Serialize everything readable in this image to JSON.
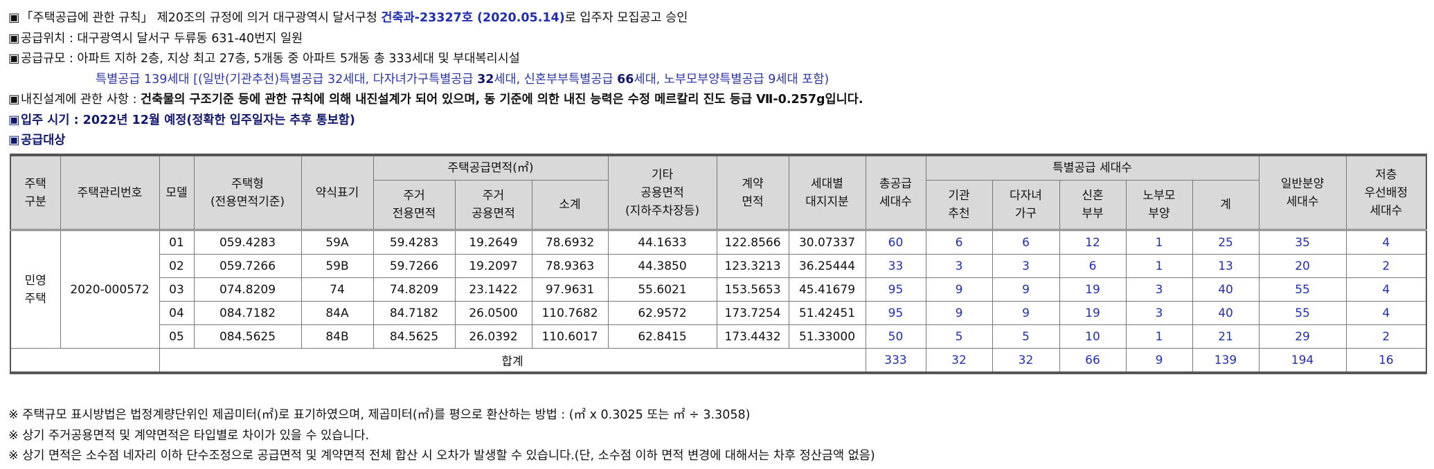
{
  "bullet": "▣",
  "lines": [
    {
      "pre": "「주택공급에 관한 규칙」 제20조의 규정에 의거 대구광역시 달서구청 ",
      "em": "건축과-23327호 (2020.05.14)",
      "post": "로 입주자 모집공고 승인"
    },
    {
      "text": "공급위치 : 대구광역시 달서구 두류동 631-40번지 일원"
    },
    {
      "text": "공급규모 : 아파트 지하 2층, 지상 최고 27층, 5개동 중 아파트 5개동 총 333세대 및 부대복리시설"
    },
    {
      "p1": "특별공급 139세대 [(일반(기관추천)특별공급 32세대, 다자녀가구특별공급  ",
      "n1": "32",
      "p2": "세대, 신혼부부특별공급 ",
      "n2": "66",
      "p3": "세대, 노부모부양특별공급 9세대 포함)"
    },
    {
      "pre": "내진설계에 관한 사항 : ",
      "bold": "건축물의 구조기준 등에 관한 규칙에 의해 내진설계가 되어 있으며, 동 기준에 의한 내진 능력은 수정 메르칼리 진도 등급 Ⅶ-0.257g입니다."
    },
    {
      "text": "입주 시기 : 2022년 12월 예정(정확한 입주일자는 추후 통보함)"
    },
    {
      "text": "공급대상"
    }
  ],
  "table": {
    "headers": {
      "housing_type": "주택\n구분",
      "mgmt_no": "주택관리번호",
      "model": "모델",
      "unit_type": "주택형\n(전용면적기준)",
      "abbr": "약식표기",
      "supply_area": "주택공급면적(㎡)",
      "exclusive": "주거\n전용면적",
      "common": "주거\n공용면적",
      "subtotal": "소계",
      "other_common": "기타\n공용면적\n(지하주차장등)",
      "contract": "계약\n면적",
      "land": "세대별\n대지지분",
      "total": "총공급\n세대수",
      "special": "특별공급 세대수",
      "institution": "기관\n추천",
      "multichild": "다자녀\n가구",
      "newlywed": "신혼\n부부",
      "elderly": "노부모\n부양",
      "sum": "계",
      "general": "일반분양\n세대수",
      "low_floor": "저층\n우선배정\n세대수"
    },
    "group_label": "민영\n주택",
    "mgmt_no": "2020-000572",
    "rows": [
      [
        "01",
        "059.4283",
        "59A",
        "59.4283",
        "19.2649",
        "78.6932",
        "44.1633",
        "122.8566",
        "30.07337",
        "60",
        "6",
        "6",
        "12",
        "1",
        "25",
        "35",
        "4"
      ],
      [
        "02",
        "059.7266",
        "59B",
        "59.7266",
        "19.2097",
        "78.9363",
        "44.3850",
        "123.3213",
        "36.25444",
        "33",
        "3",
        "3",
        "6",
        "1",
        "13",
        "20",
        "2"
      ],
      [
        "03",
        "074.8209",
        "74",
        "74.8209",
        "23.1422",
        "97.9631",
        "55.6021",
        "153.5653",
        "45.41679",
        "95",
        "9",
        "9",
        "19",
        "3",
        "40",
        "55",
        "4"
      ],
      [
        "04",
        "084.7182",
        "84A",
        "84.7182",
        "26.0500",
        "110.7682",
        "62.9572",
        "173.7254",
        "51.42451",
        "95",
        "9",
        "9",
        "19",
        "3",
        "40",
        "55",
        "4"
      ],
      [
        "05",
        "084.5625",
        "84B",
        "84.5625",
        "26.0392",
        "110.6017",
        "62.8415",
        "173.4432",
        "51.33000",
        "50",
        "5",
        "5",
        "10",
        "1",
        "21",
        "29",
        "2"
      ]
    ],
    "total_label": "합계",
    "totals": [
      "333",
      "32",
      "32",
      "66",
      "9",
      "139",
      "194",
      "16"
    ]
  },
  "notes": [
    "※ 주택규모 표시방법은 법정계량단위인 제곱미터(㎡)로 표기하였으며, 제곱미터(㎡)를 평으로 환산하는 방법 : (㎡ x 0.3025 또는 ㎡ ÷ 3.3058)",
    "※ 상기 주거공용면적 및 계약면적은 타입별로 차이가 있을 수 있습니다.",
    "※ 상기 면적은 소수점 네자리 이하 단수조정으로 공급면적 및 계약면적 전체 합산 시 오차가 발생할 수 있습니다.(단, 소수점 이하 면적 변경에 대해서는 차후 정산금액 없음)"
  ],
  "colors": {
    "blue": "#1f2fb0",
    "navy": "#10186e",
    "header_bg": "#d9d9d9"
  }
}
